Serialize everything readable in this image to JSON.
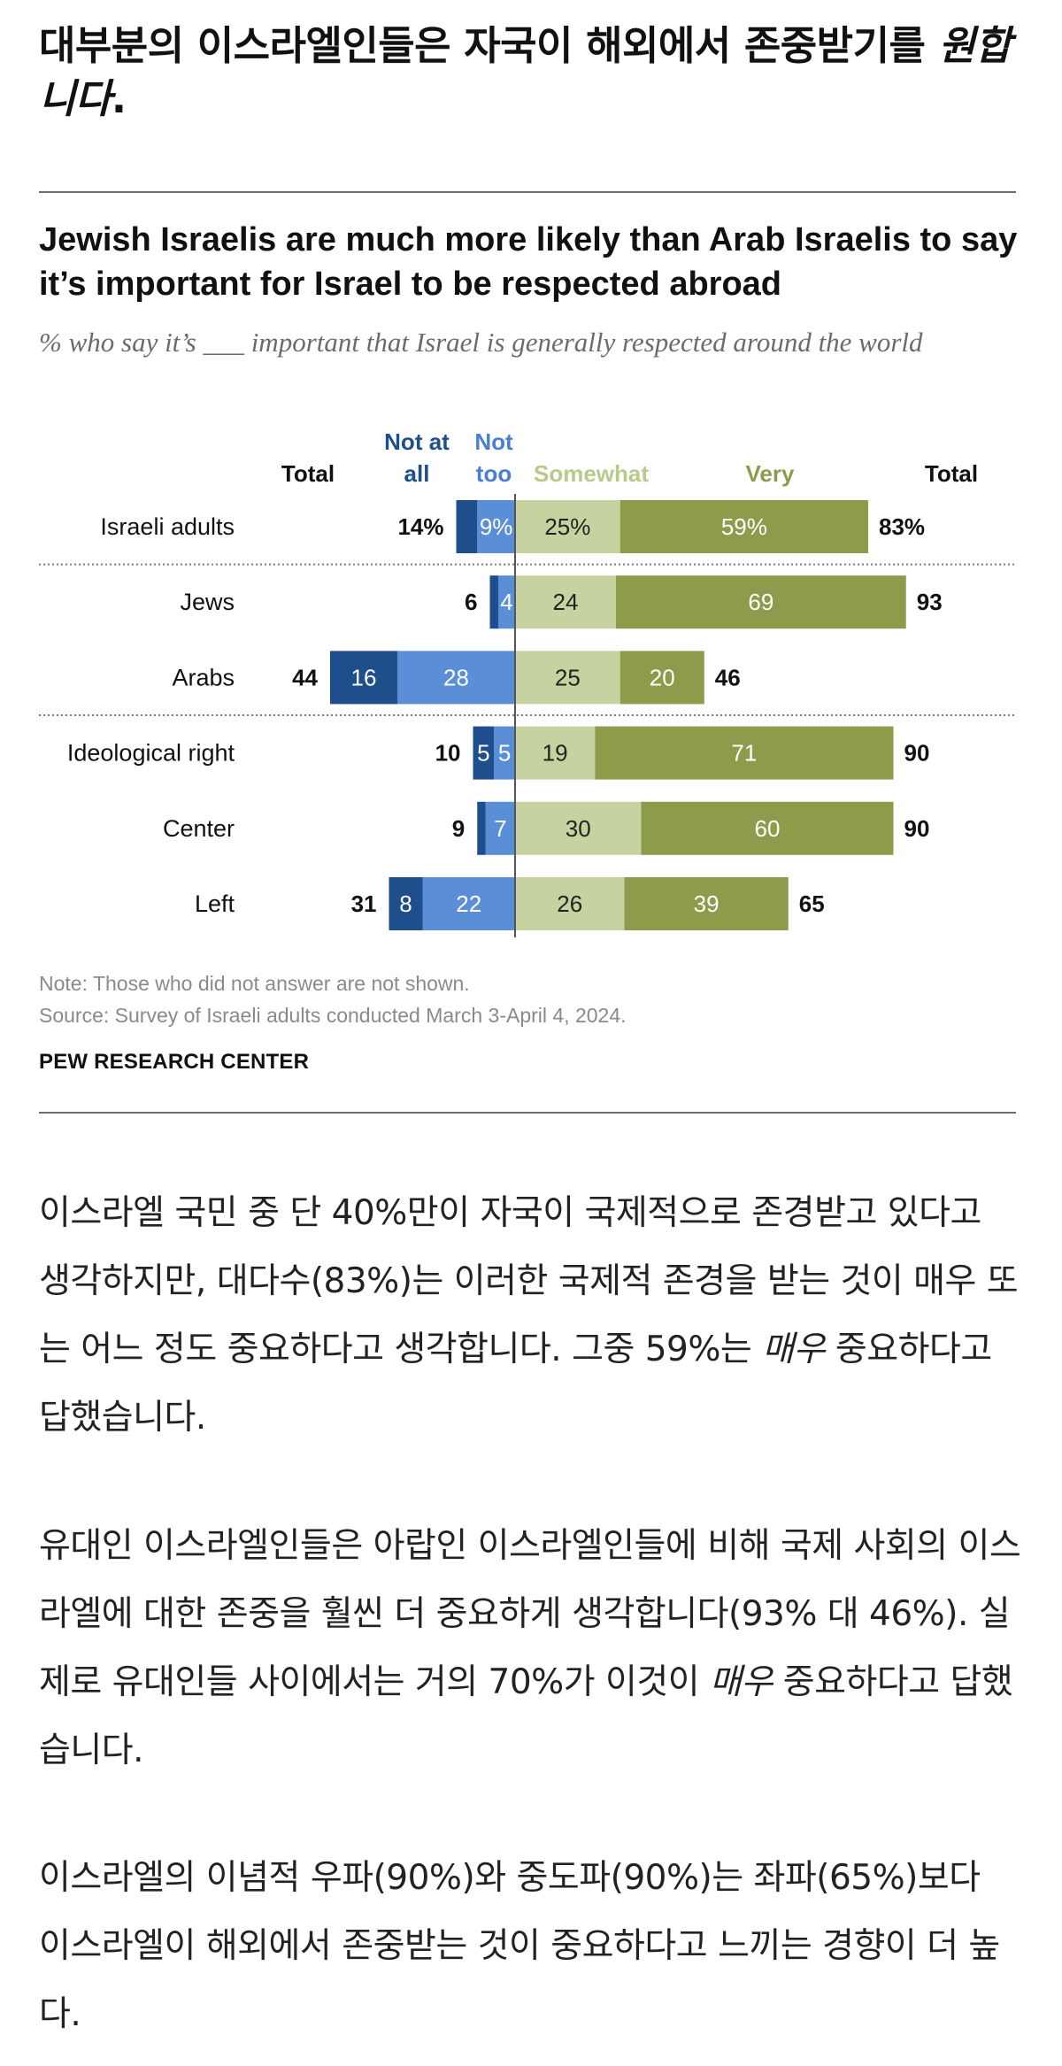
{
  "headline": {
    "text": "대부분의 이스라엘인들은 자국이 해외에서 존중받기를 ",
    "emphasis": "원합니다",
    "suffix": "."
  },
  "chart_data": {
    "type": "bar",
    "orientation": "horizontal-diverging",
    "title": "Jewish Israelis are much more likely than Arab Israelis to say it’s important for Israel to be respected abroad",
    "subtitle": "% who say it’s ___ important that Israel is generally respected around the world",
    "column_headers": {
      "total_left": "Total",
      "not_at_all": "Not at all",
      "not_too": "Not too",
      "somewhat": "Somewhat",
      "very": "Very",
      "total_right": "Total"
    },
    "colors": {
      "not_at_all": "#1f4e8c",
      "not_too": "#5a8fd8",
      "somewhat": "#c6d3a0",
      "very": "#8c9c4a",
      "header_not_at_all": "#1f4e8c",
      "header_not_too": "#4a7fcf",
      "header_somewhat": "#b9c98a",
      "header_very": "#8c9c4a",
      "axis": "#555555",
      "separator": "#7a7a7a"
    },
    "categories": [
      "Israeli adults",
      "Jews",
      "Arabs",
      "Ideological right",
      "Center",
      "Left"
    ],
    "series": [
      {
        "name": "Not at all",
        "values": [
          5,
          2,
          16,
          5,
          2,
          8
        ],
        "labels": [
          "",
          "",
          "16",
          "5",
          "",
          "8"
        ]
      },
      {
        "name": "Not too",
        "values": [
          9,
          4,
          28,
          5,
          7,
          22
        ],
        "labels": [
          "9%",
          "4",
          "28",
          "5",
          "7",
          "22"
        ]
      },
      {
        "name": "Somewhat",
        "values": [
          25,
          24,
          25,
          19,
          30,
          26
        ],
        "labels": [
          "25%",
          "24",
          "25",
          "19",
          "30",
          "26"
        ]
      },
      {
        "name": "Very",
        "values": [
          59,
          69,
          20,
          71,
          60,
          39
        ],
        "labels": [
          "59%",
          "69",
          "20",
          "71",
          "60",
          "39"
        ]
      }
    ],
    "totals_left": [
      "14%",
      "6",
      "44",
      "10",
      "9",
      "31"
    ],
    "totals_right": [
      "83%",
      "93",
      "46",
      "90",
      "90",
      "65"
    ],
    "group_separators_after": [
      0,
      2
    ],
    "note": "Note: Those who did not answer are not shown.",
    "source": "Source: Survey of Israeli adults conducted March 3-April 4, 2024.",
    "org": "PEW RESEARCH CENTER"
  },
  "body": {
    "p1": "이스라엘 국민 중 단 40%만이 자국이 국제적으로 존경받고 있다고 생각하지만, 대다수(83%)는 이러한 국제적 존경을 받는 것이 매우 또는 어느 정도 중요하다고 생각합니다. 그중 59%는 ",
    "p1_em": "매우",
    "p1_end": " 중요하다고 답했습니다.",
    "p2": "유대인 이스라엘인들은 아랍인 이스라엘인들에 비해 국제 사회의 이스라엘에 대한 존중을 훨씬 더 중요하게 생각합니다(93% 대 46%). 실제로 유대인들 사이에서는 거의 70%가 이것이 ",
    "p2_em": "매우",
    "p2_end": " 중요하다고 답했습니다.",
    "p3": "이스라엘의 이념적 우파(90%)와 중도파(90%)는 좌파(65%)보다 이스라엘이 해외에서 존중받는 것이 중요하다고 느끼는 경향이 더 높다."
  }
}
